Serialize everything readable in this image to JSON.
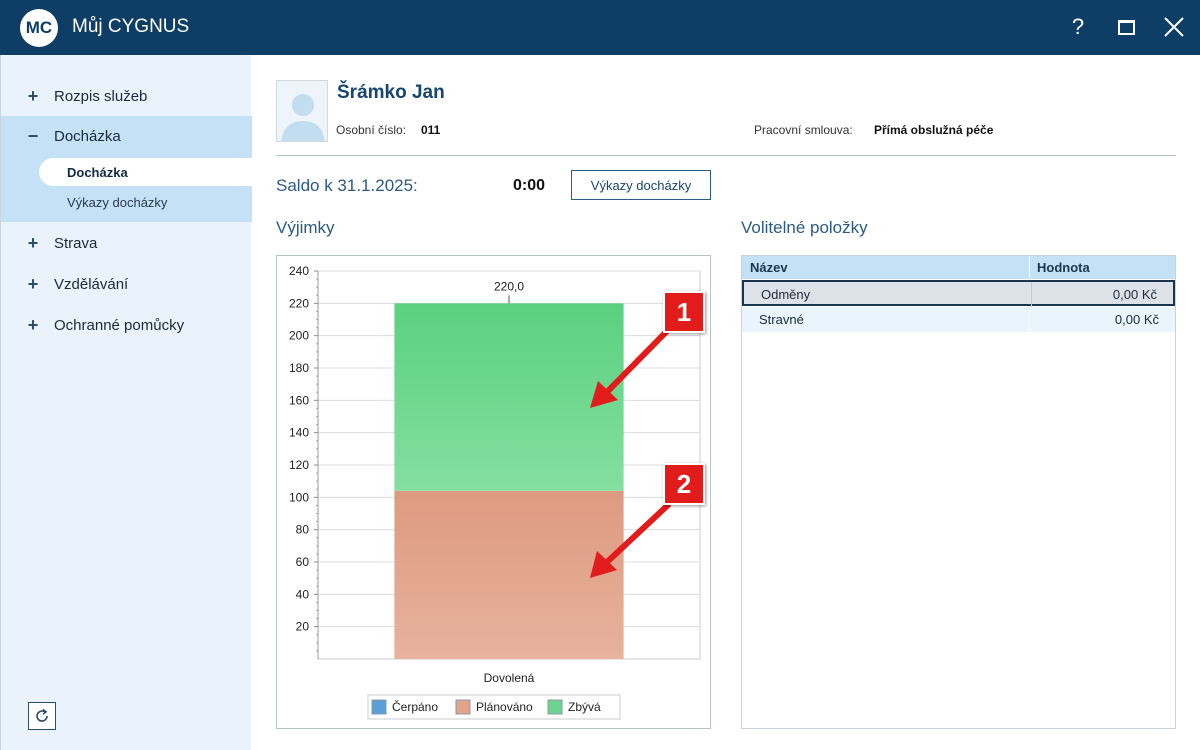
{
  "titlebar": {
    "logo": "MC",
    "title": "Můj CYGNUS",
    "help": "?"
  },
  "sidebar": {
    "items": [
      {
        "label": "Rozpis služeb",
        "sign": "+"
      },
      {
        "label": "Docházka",
        "sign": "−"
      },
      {
        "label": "Strava",
        "sign": "+"
      },
      {
        "label": "Vzdělávání",
        "sign": "+"
      },
      {
        "label": "Ochranné pomůcky",
        "sign": "+"
      }
    ],
    "subitems": [
      "Docházka",
      "Výkazy docházky"
    ]
  },
  "employee": {
    "name": "Šrámko Jan",
    "id_label": "Osobní číslo:",
    "id_value": "011",
    "contract_label": "Pracovní smlouva:",
    "contract_value": "Přímá obslužná péče"
  },
  "saldo": {
    "label": "Saldo k 31.1.2025:",
    "value": "0:00",
    "button": "Výkazy docházky"
  },
  "sections": {
    "exceptions": "Výjimky",
    "optional": "Volitelné položky"
  },
  "chart_data": {
    "type": "bar",
    "stacked": true,
    "categories": [
      "Dovolená"
    ],
    "series": [
      {
        "name": "Čerpáno",
        "values": [
          0
        ],
        "color": "#5a9fd8"
      },
      {
        "name": "Plánováno",
        "values": [
          104
        ],
        "color": "#e3a48a"
      },
      {
        "name": "Zbývá",
        "values": [
          116
        ],
        "color": "#6dd490"
      }
    ],
    "total_labels": [
      "220,0"
    ],
    "ylim": [
      0,
      240
    ],
    "yticks": [
      20,
      40,
      60,
      80,
      100,
      120,
      140,
      160,
      180,
      200,
      220,
      240
    ],
    "grid": true,
    "legend": "bottom"
  },
  "table": {
    "headers": [
      "Název",
      "Hodnota"
    ],
    "rows": [
      {
        "name": "Odměny",
        "value": "0,00 Kč"
      },
      {
        "name": "Stravné",
        "value": "0,00 Kč"
      }
    ]
  },
  "annotations": [
    "1",
    "2"
  ],
  "colors": {
    "titlebar": "#0e3d66",
    "accent": "#2b5a85",
    "marker": "#e21b1b"
  }
}
